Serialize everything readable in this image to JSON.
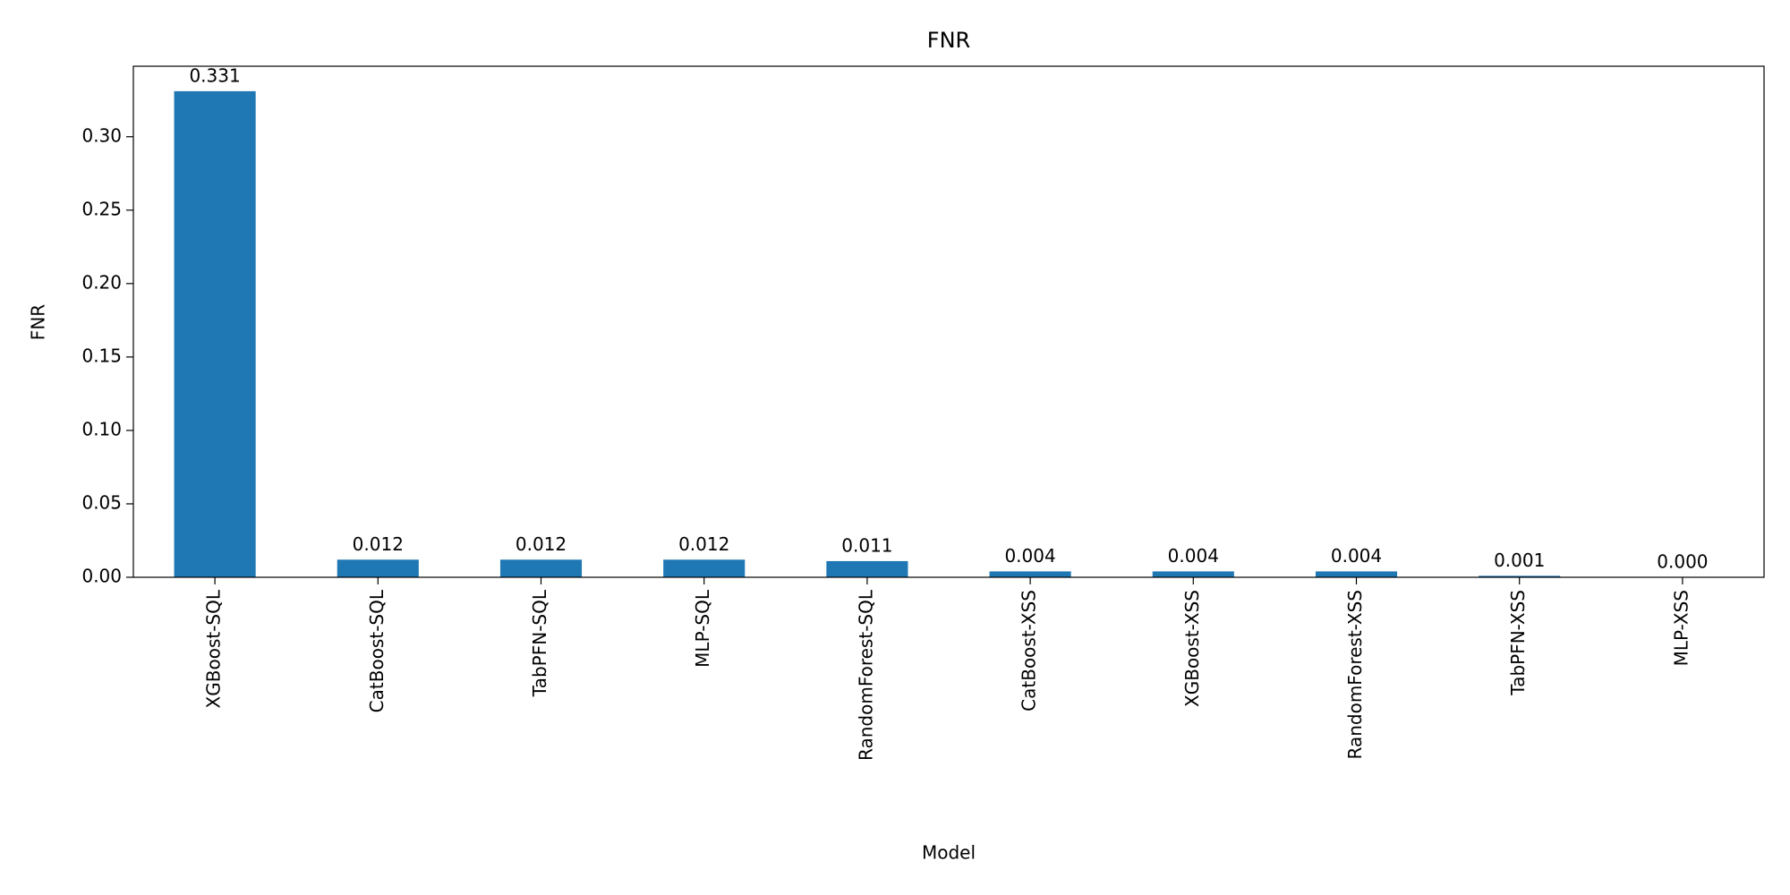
{
  "chart_data": {
    "type": "bar",
    "title": "FNR",
    "x_label": "Model",
    "y_label": "FNR",
    "categories": [
      "XGBoost-SQL",
      "CatBoost-SQL",
      "TabPFN-SQL",
      "MLP-SQL",
      "RandomForest-SQL",
      "CatBoost-XSS",
      "XGBoost-XSS",
      "RandomForest-XSS",
      "TabPFN-XSS",
      "MLP-XSS"
    ],
    "values": [
      0.331,
      0.012,
      0.012,
      0.012,
      0.011,
      0.004,
      0.004,
      0.004,
      0.001,
      0.0
    ],
    "value_labels": [
      "0.331",
      "0.012",
      "0.012",
      "0.012",
      "0.011",
      "0.004",
      "0.004",
      "0.004",
      "0.001",
      "0.000"
    ],
    "color": "#1f77b4",
    "ylim": [
      0,
      0.348
    ],
    "yticks": [
      {
        "value": 0,
        "label": "0.00"
      },
      {
        "value": 0.05,
        "label": "0.05"
      },
      {
        "value": 0.1,
        "label": "0.10"
      },
      {
        "value": 0.15,
        "label": "0.15"
      },
      {
        "value": 0.2,
        "label": "0.20"
      },
      {
        "value": 0.25,
        "label": "0.25"
      },
      {
        "value": 0.3,
        "label": "0.30"
      }
    ],
    "grid": false
  }
}
